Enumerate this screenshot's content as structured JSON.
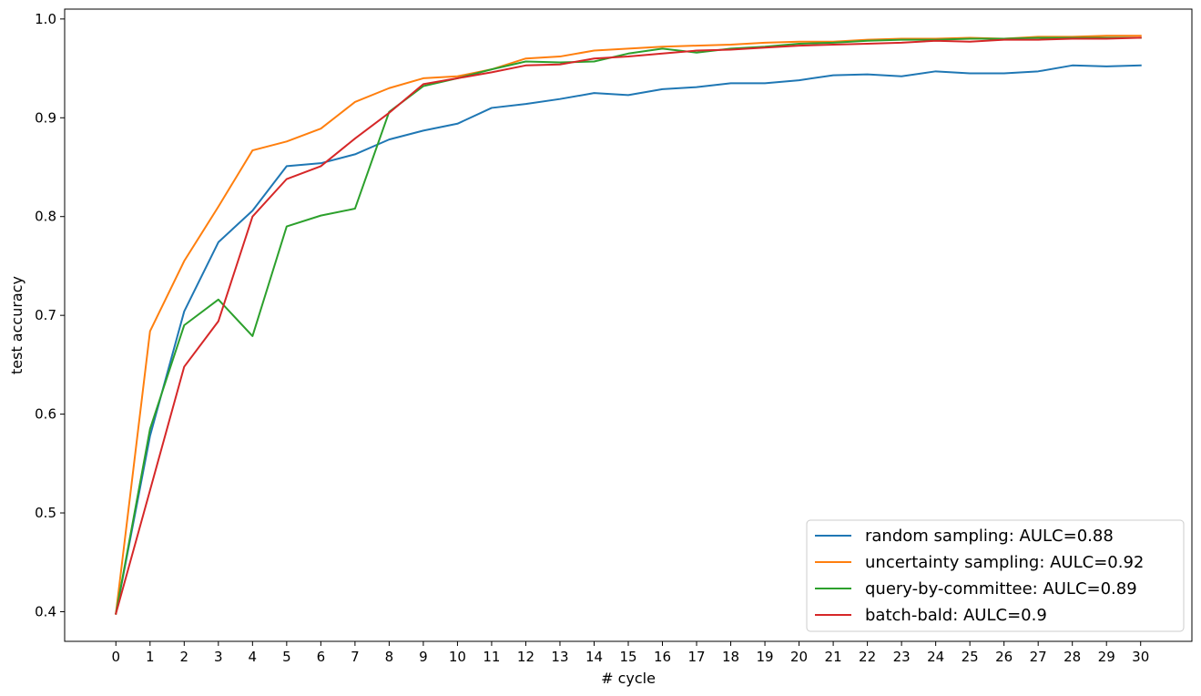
{
  "chart_data": {
    "type": "line",
    "title": "",
    "xlabel": "# cycle",
    "ylabel": "test accuracy",
    "xlim": [
      -1.5,
      31.5
    ],
    "ylim": [
      0.37,
      1.01
    ],
    "yticks": [
      0.4,
      0.5,
      0.6,
      0.7,
      0.8,
      0.9,
      1.0
    ],
    "ytick_labels": [
      "0.4",
      "0.5",
      "0.6",
      "0.7",
      "0.8",
      "0.9",
      "1.0"
    ],
    "xticks": [
      0,
      1,
      2,
      3,
      4,
      5,
      6,
      7,
      8,
      9,
      10,
      11,
      12,
      13,
      14,
      15,
      16,
      17,
      18,
      19,
      20,
      21,
      22,
      23,
      24,
      25,
      26,
      27,
      28,
      29,
      30
    ],
    "xtick_labels": [
      "0",
      "1",
      "2",
      "3",
      "4",
      "5",
      "6",
      "7",
      "8",
      "9",
      "10",
      "11",
      "12",
      "13",
      "14",
      "15",
      "16",
      "17",
      "18",
      "19",
      "20",
      "21",
      "22",
      "23",
      "24",
      "25",
      "26",
      "27",
      "28",
      "29",
      "30"
    ],
    "grid": false,
    "legend_position": "bottom-right",
    "x": [
      0,
      1,
      2,
      3,
      4,
      5,
      6,
      7,
      8,
      9,
      10,
      11,
      12,
      13,
      14,
      15,
      16,
      17,
      18,
      19,
      20,
      21,
      22,
      23,
      24,
      25,
      26,
      27,
      28,
      29,
      30
    ],
    "series": [
      {
        "name": "random sampling: AULC=0.88",
        "color": "#1f77b4",
        "values": [
          0.398,
          0.578,
          0.704,
          0.774,
          0.806,
          0.851,
          0.854,
          0.863,
          0.878,
          0.887,
          0.894,
          0.91,
          0.914,
          0.919,
          0.925,
          0.923,
          0.929,
          0.931,
          0.935,
          0.935,
          0.938,
          0.943,
          0.944,
          0.942,
          0.947,
          0.945,
          0.945,
          0.947,
          0.953,
          0.952,
          0.953
        ]
      },
      {
        "name": "uncertainty sampling: AULC=0.92",
        "color": "#ff7f0e",
        "values": [
          0.398,
          0.684,
          0.755,
          0.81,
          0.867,
          0.876,
          0.889,
          0.916,
          0.93,
          0.94,
          0.942,
          0.949,
          0.96,
          0.962,
          0.968,
          0.97,
          0.972,
          0.973,
          0.974,
          0.976,
          0.977,
          0.977,
          0.979,
          0.98,
          0.98,
          0.981,
          0.98,
          0.982,
          0.982,
          0.983,
          0.983
        ]
      },
      {
        "name": "query-by-committee: AULC=0.89",
        "color": "#2ca02c",
        "values": [
          0.398,
          0.585,
          0.69,
          0.716,
          0.679,
          0.79,
          0.801,
          0.808,
          0.906,
          0.932,
          0.94,
          0.949,
          0.957,
          0.956,
          0.957,
          0.965,
          0.97,
          0.966,
          0.97,
          0.972,
          0.975,
          0.976,
          0.978,
          0.979,
          0.979,
          0.98,
          0.98,
          0.981,
          0.981,
          0.981,
          0.981
        ]
      },
      {
        "name": "batch-bald: AULC=0.9",
        "color": "#d62728",
        "values": [
          0.398,
          0.523,
          0.648,
          0.694,
          0.8,
          0.838,
          0.851,
          0.879,
          0.905,
          0.934,
          0.94,
          0.946,
          0.953,
          0.954,
          0.96,
          0.962,
          0.965,
          0.968,
          0.969,
          0.971,
          0.973,
          0.974,
          0.975,
          0.976,
          0.978,
          0.977,
          0.979,
          0.979,
          0.98,
          0.98,
          0.981
        ]
      }
    ]
  }
}
